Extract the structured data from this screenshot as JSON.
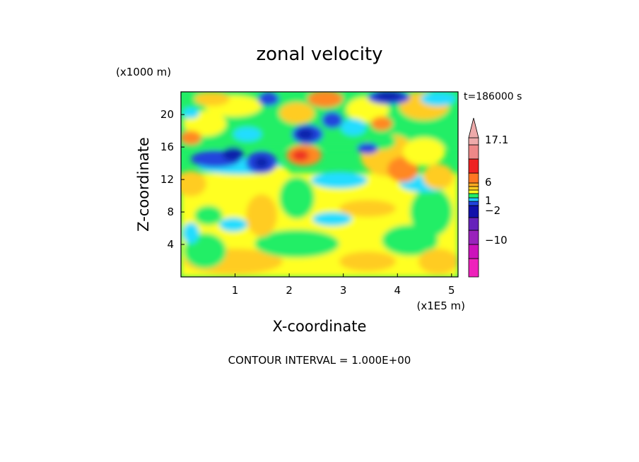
{
  "chart_data": {
    "type": "heatmap",
    "title": "zonal velocity",
    "xlabel": "X-coordinate",
    "ylabel": "Z-coordinate",
    "x_units": "(x1E5 m)",
    "y_units": "(x1000 m)",
    "time_label": "t=186000 s",
    "footer": "CONTOUR INTERVAL = 1.000E+00",
    "x_ticks": [
      "1",
      "2",
      "3",
      "4",
      "5"
    ],
    "y_ticks": [
      "4",
      "8",
      "12",
      "16",
      "20"
    ],
    "xlim": [
      0,
      5.12
    ],
    "ylim": [
      0,
      22.8
    ],
    "colorbar": {
      "labels": [
        "17.1",
        "6",
        "1",
        "−2",
        "−10"
      ],
      "bands": [
        {
          "color": "#ee22bb"
        },
        {
          "color": "#cc11bb"
        },
        {
          "color": "#9922bb"
        },
        {
          "color": "#6622bb"
        },
        {
          "color": "#1111aa"
        },
        {
          "color": "#2244dd"
        },
        {
          "color": "#22ccff"
        },
        {
          "color": "#22ee66"
        },
        {
          "color": "#ffff22"
        },
        {
          "color": "#ffcc22"
        },
        {
          "color": "#ffaa22"
        },
        {
          "color": "#ff7722"
        },
        {
          "color": "#ee2222"
        },
        {
          "color": "#ee8888"
        },
        {
          "color": "#eeaaaa"
        }
      ]
    },
    "colors": {
      "deep_blue": "#1122aa",
      "blue": "#2244dd",
      "cyan": "#22ddff",
      "green": "#22ee66",
      "yellow": "#ffff22",
      "gold": "#ffcc22",
      "orange": "#ff8822",
      "red": "#ee3322"
    }
  }
}
